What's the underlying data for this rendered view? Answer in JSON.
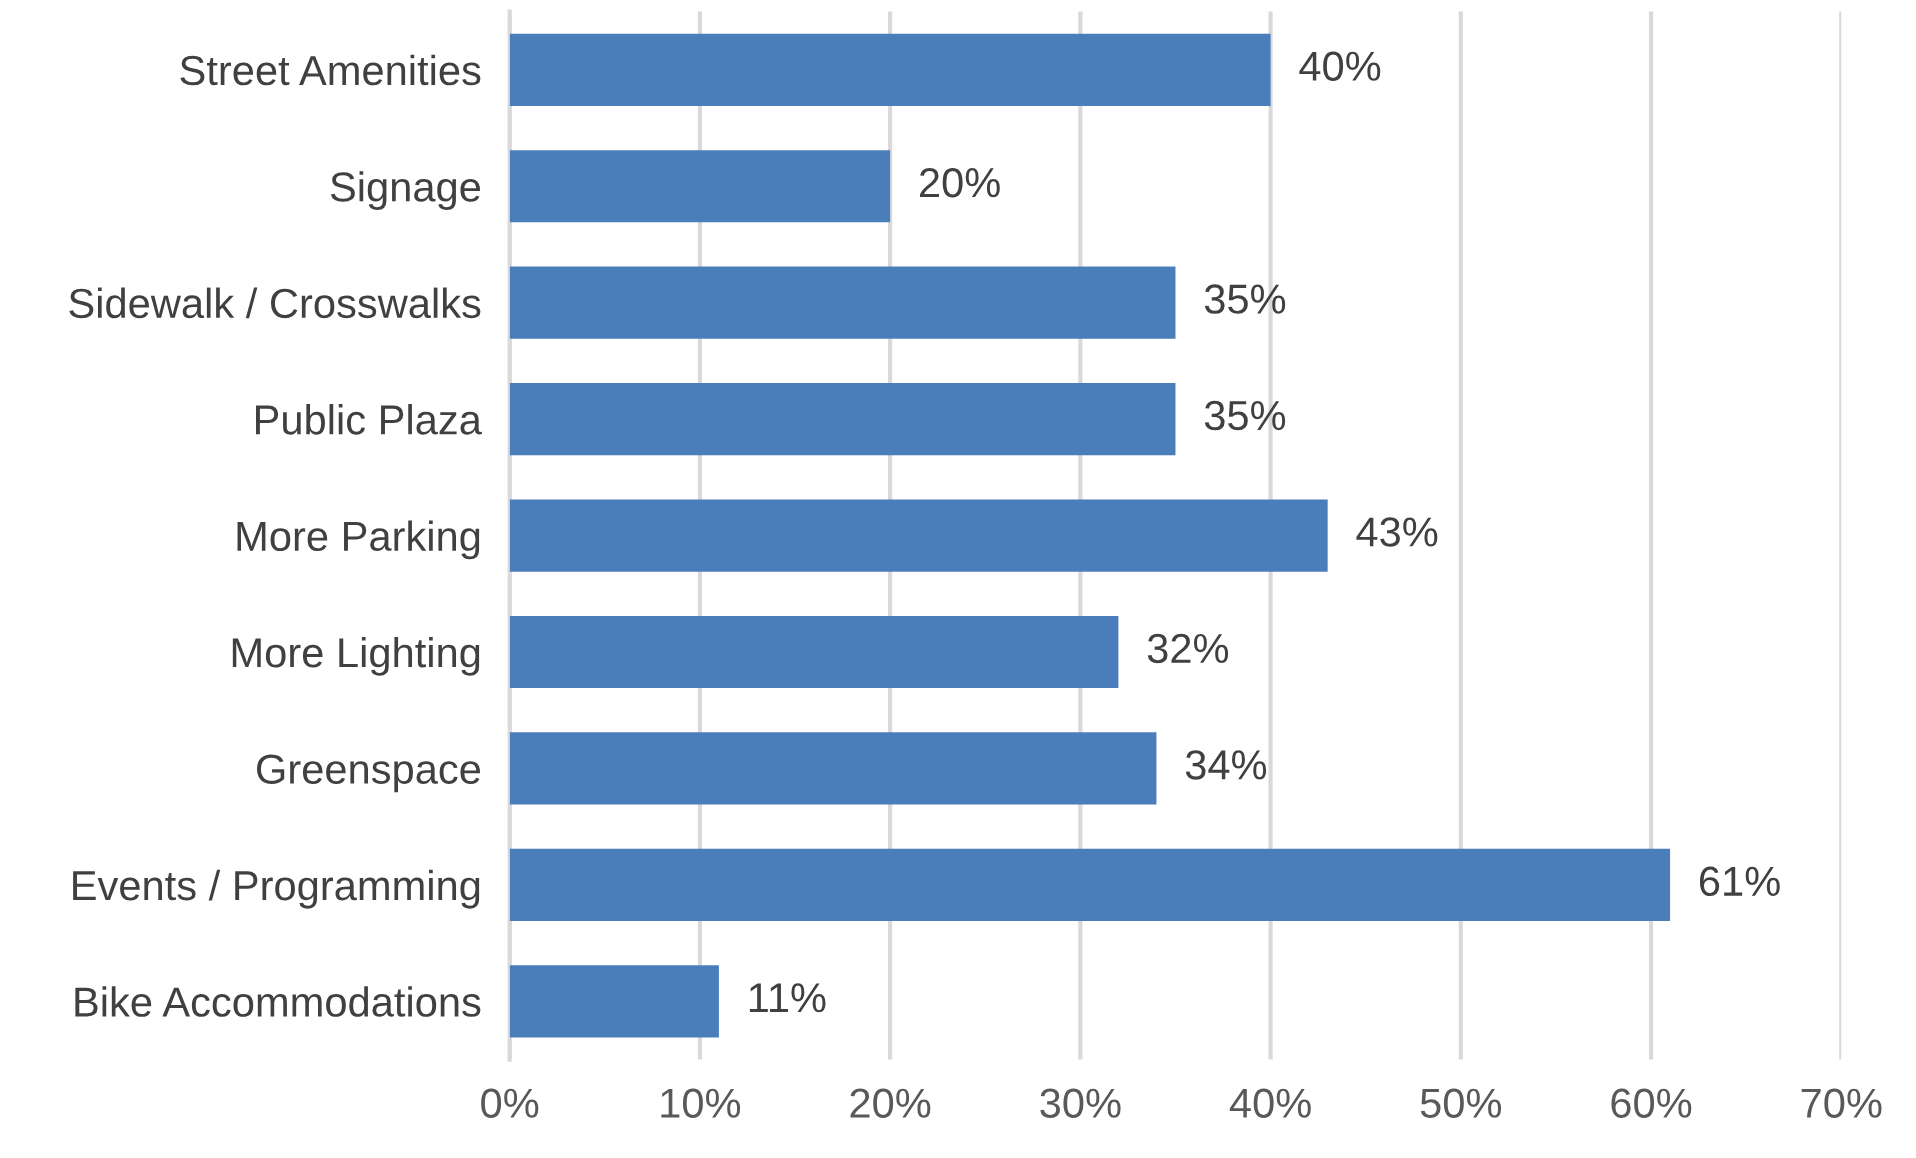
{
  "chart_data": {
    "type": "bar",
    "orientation": "horizontal",
    "categories": [
      "Street Amenities",
      "Signage",
      "Sidewalk / Crosswalks",
      "Public Plaza",
      "More Parking",
      "More Lighting",
      "Greenspace",
      "Events / Programming",
      "Bike Accommodations"
    ],
    "values": [
      40,
      20,
      35,
      35,
      43,
      32,
      34,
      61,
      11
    ],
    "value_labels": [
      "40%",
      "20%",
      "35%",
      "35%",
      "43%",
      "32%",
      "34%",
      "61%",
      "11%"
    ],
    "color": "#4a7ebb",
    "xlim": [
      0,
      70
    ],
    "xticks": [
      {
        "value": 0,
        "label": "0%"
      },
      {
        "value": 10,
        "label": "10%"
      },
      {
        "value": 20,
        "label": "20%"
      },
      {
        "value": 30,
        "label": "30%"
      },
      {
        "value": 40,
        "label": "40%"
      },
      {
        "value": 50,
        "label": "50%"
      },
      {
        "value": 60,
        "label": "60%"
      },
      {
        "value": 70,
        "label": "70%"
      }
    ],
    "grid": "x",
    "legend": false
  }
}
